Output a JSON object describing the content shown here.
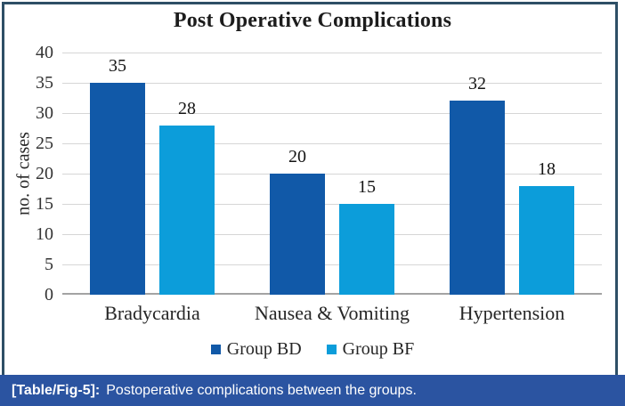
{
  "chart_data": {
    "type": "bar",
    "title": "Post Operative Complications",
    "categories": [
      "Bradycardia",
      "Nausea & Vomiting",
      "Hypertension"
    ],
    "series": [
      {
        "name": "Group BD",
        "values": [
          35,
          20,
          32
        ],
        "color": "#1159a8"
      },
      {
        "name": "Group BF",
        "values": [
          28,
          15,
          18
        ],
        "color": "#0c9dda"
      }
    ],
    "xlabel": "",
    "ylabel": "no. of cases",
    "ylim": [
      0,
      40
    ],
    "ytick_step": 5,
    "grid": true,
    "legend_position": "bottom",
    "data_labels": true
  },
  "caption": {
    "label": "[Table/Fig-5]:",
    "text": "Postoperative complications between the groups."
  },
  "colors": {
    "series_bd": "#1159a8",
    "series_bf": "#0c9dda",
    "caption_background": "#2b54a1",
    "frame_border": "#2e4f66",
    "gridline": "#d6d6d6",
    "axis_line": "#a3a3a3"
  }
}
